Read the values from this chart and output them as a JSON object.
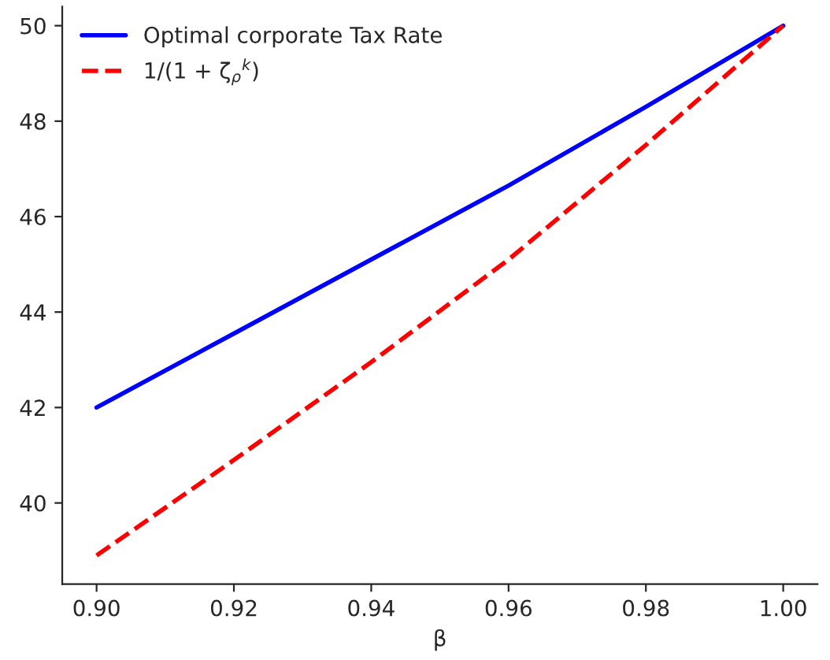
{
  "chart_data": {
    "type": "line",
    "xlabel": "β",
    "x": [
      0.9,
      0.92,
      0.94,
      0.96,
      0.98,
      1.0
    ],
    "series": [
      {
        "name": "Optimal corporate Tax Rate",
        "color": "#0000ff",
        "line_style": "solid",
        "values": [
          42.0,
          43.55,
          45.1,
          46.65,
          48.3,
          50.0
        ]
      },
      {
        "name": "1/(1 + ζ$_{ρ}$$^{k}$)",
        "color": "#ff0000",
        "line_style": "dashed",
        "values": [
          38.9,
          40.9,
          42.95,
          45.1,
          47.5,
          50.0
        ]
      }
    ],
    "xlim": [
      0.895,
      1.005
    ],
    "ylim": [
      38.3,
      50.4
    ],
    "xticks": [
      {
        "value": 0.9,
        "label": "0.90"
      },
      {
        "value": 0.92,
        "label": "0.92"
      },
      {
        "value": 0.94,
        "label": "0.94"
      },
      {
        "value": 0.96,
        "label": "0.96"
      },
      {
        "value": 0.98,
        "label": "0.98"
      },
      {
        "value": 1.0,
        "label": "1.00"
      }
    ],
    "yticks": [
      40,
      42,
      44,
      46,
      48,
      50
    ],
    "legend": "top left",
    "grid": false,
    "marker": "none"
  }
}
